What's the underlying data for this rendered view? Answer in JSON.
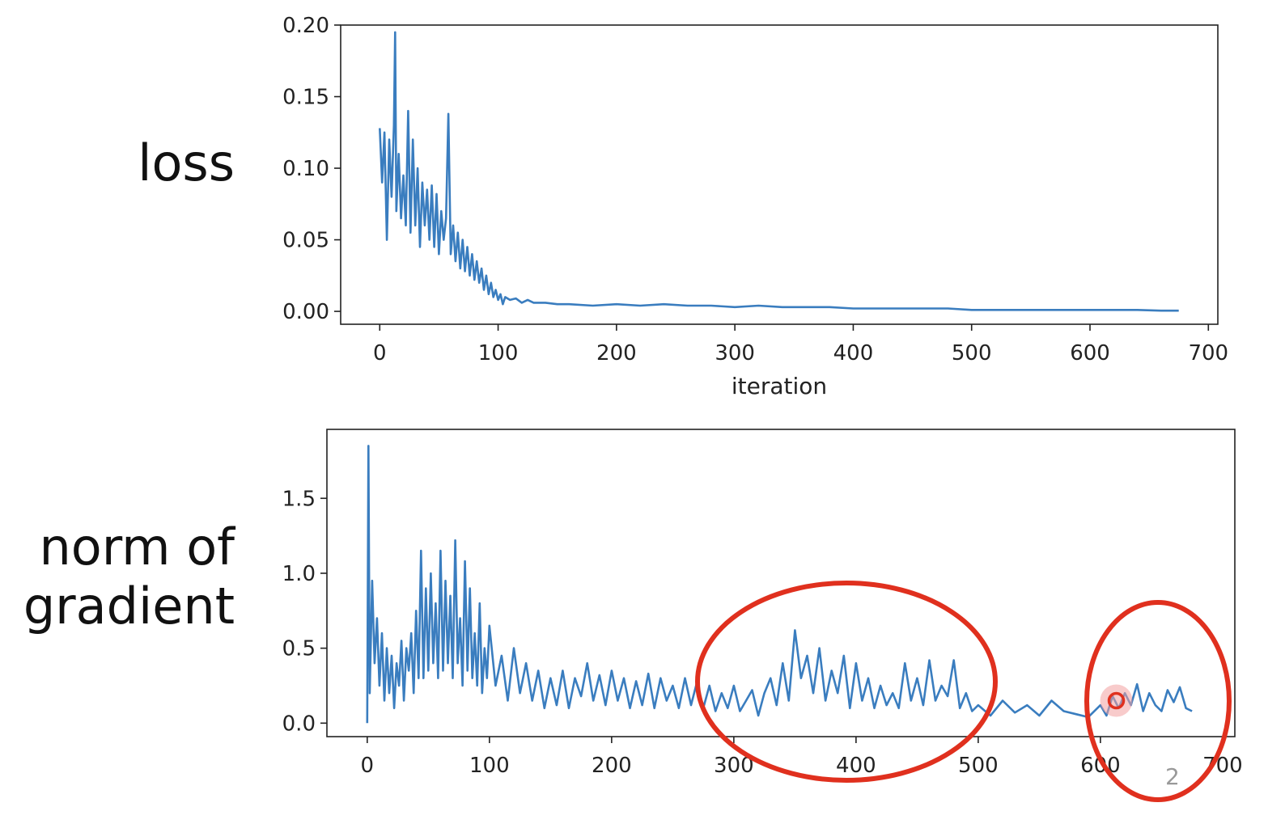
{
  "labels": {
    "loss": "loss",
    "norm_line1": "norm of",
    "norm_line2": "gradient"
  },
  "slide_number": "2",
  "colors": {
    "series": "#3a7dbf",
    "annotation": "#e0301e",
    "axes": "#222222"
  },
  "chart_data": [
    {
      "type": "line",
      "title": "",
      "xlabel": "iteration",
      "ylabel": "",
      "xlim": [
        -33,
        708
      ],
      "ylim": [
        -0.009,
        0.2
      ],
      "xticks": [
        0,
        100,
        200,
        300,
        400,
        500,
        600,
        700
      ],
      "xtick_labels": [
        "0",
        "100",
        "200",
        "300",
        "400",
        "500",
        "600",
        "700"
      ],
      "yticks": [
        0.0,
        0.05,
        0.1,
        0.15,
        0.2
      ],
      "ytick_labels": [
        "0.00",
        "0.05",
        "0.10",
        "0.15",
        "0.20"
      ],
      "grid": false,
      "series": [
        {
          "x": [
            0,
            2,
            4,
            6,
            8,
            10,
            12,
            13,
            14,
            16,
            18,
            20,
            22,
            24,
            26,
            28,
            30,
            32,
            34,
            36,
            38,
            40,
            42,
            44,
            46,
            48,
            50,
            52,
            54,
            56,
            58,
            60,
            62,
            64,
            66,
            68,
            70,
            72,
            74,
            76,
            78,
            80,
            82,
            84,
            86,
            88,
            90,
            92,
            94,
            96,
            98,
            100,
            102,
            104,
            106,
            110,
            115,
            120,
            125,
            130,
            140,
            150,
            160,
            180,
            200,
            220,
            240,
            260,
            280,
            300,
            320,
            340,
            360,
            380,
            400,
            420,
            440,
            460,
            480,
            500,
            520,
            540,
            560,
            580,
            600,
            620,
            640,
            660,
            675
          ],
          "y": [
            0.128,
            0.09,
            0.125,
            0.05,
            0.12,
            0.08,
            0.13,
            0.195,
            0.07,
            0.11,
            0.065,
            0.095,
            0.06,
            0.14,
            0.055,
            0.12,
            0.06,
            0.1,
            0.045,
            0.09,
            0.06,
            0.085,
            0.05,
            0.088,
            0.045,
            0.082,
            0.04,
            0.07,
            0.05,
            0.065,
            0.138,
            0.04,
            0.06,
            0.035,
            0.055,
            0.03,
            0.05,
            0.028,
            0.045,
            0.025,
            0.04,
            0.022,
            0.035,
            0.02,
            0.03,
            0.015,
            0.025,
            0.012,
            0.02,
            0.01,
            0.015,
            0.008,
            0.012,
            0.005,
            0.01,
            0.008,
            0.009,
            0.006,
            0.008,
            0.006,
            0.006,
            0.005,
            0.005,
            0.004,
            0.005,
            0.004,
            0.005,
            0.004,
            0.004,
            0.003,
            0.004,
            0.003,
            0.003,
            0.003,
            0.002,
            0.002,
            0.002,
            0.002,
            0.002,
            0.001,
            0.001,
            0.001,
            0.001,
            0.001,
            0.001,
            0.001,
            0.001,
            0.0005,
            0.0005
          ]
        }
      ]
    },
    {
      "type": "line",
      "title": "",
      "xlabel": "",
      "ylabel": "",
      "xlim": [
        -33,
        710
      ],
      "ylim": [
        -0.09,
        1.96
      ],
      "xticks": [
        0,
        100,
        200,
        300,
        400,
        500,
        600,
        700
      ],
      "xtick_labels": [
        "0",
        "100",
        "200",
        "300",
        "400",
        "500",
        "600",
        "700"
      ],
      "yticks": [
        0.0,
        0.5,
        1.0,
        1.5
      ],
      "ytick_labels": [
        "0.0",
        "0.5",
        "1.0",
        "1.5"
      ],
      "grid": false,
      "series": [
        {
          "x": [
            0,
            1,
            2,
            4,
            6,
            8,
            10,
            12,
            14,
            16,
            18,
            20,
            22,
            24,
            26,
            28,
            30,
            32,
            34,
            36,
            38,
            40,
            42,
            44,
            46,
            48,
            50,
            52,
            54,
            56,
            58,
            60,
            62,
            64,
            66,
            68,
            70,
            72,
            74,
            76,
            78,
            80,
            82,
            84,
            86,
            88,
            90,
            92,
            94,
            96,
            98,
            100,
            105,
            110,
            115,
            120,
            125,
            130,
            135,
            140,
            145,
            150,
            155,
            160,
            165,
            170,
            175,
            180,
            185,
            190,
            195,
            200,
            205,
            210,
            215,
            220,
            225,
            230,
            235,
            240,
            245,
            250,
            255,
            260,
            265,
            270,
            275,
            280,
            285,
            290,
            295,
            300,
            305,
            310,
            315,
            320,
            325,
            330,
            335,
            340,
            345,
            350,
            355,
            360,
            365,
            370,
            375,
            380,
            385,
            390,
            395,
            400,
            405,
            410,
            415,
            420,
            425,
            430,
            435,
            440,
            445,
            450,
            455,
            460,
            465,
            470,
            475,
            480,
            485,
            490,
            495,
            500,
            510,
            520,
            530,
            540,
            550,
            560,
            570,
            580,
            590,
            600,
            605,
            610,
            615,
            620,
            625,
            630,
            635,
            640,
            645,
            650,
            655,
            660,
            665,
            670,
            675
          ],
          "y": [
            0.0,
            1.85,
            0.2,
            0.95,
            0.4,
            0.7,
            0.25,
            0.6,
            0.15,
            0.5,
            0.2,
            0.45,
            0.1,
            0.4,
            0.25,
            0.55,
            0.15,
            0.5,
            0.35,
            0.6,
            0.2,
            0.75,
            0.3,
            1.15,
            0.3,
            0.9,
            0.35,
            1.0,
            0.4,
            0.8,
            0.3,
            1.15,
            0.35,
            0.95,
            0.4,
            0.85,
            0.3,
            1.22,
            0.4,
            0.7,
            0.25,
            1.08,
            0.35,
            0.9,
            0.3,
            0.6,
            0.25,
            0.8,
            0.2,
            0.5,
            0.3,
            0.65,
            0.25,
            0.45,
            0.15,
            0.5,
            0.2,
            0.4,
            0.15,
            0.35,
            0.1,
            0.3,
            0.12,
            0.35,
            0.1,
            0.3,
            0.18,
            0.4,
            0.15,
            0.32,
            0.12,
            0.35,
            0.15,
            0.3,
            0.1,
            0.28,
            0.12,
            0.33,
            0.1,
            0.3,
            0.15,
            0.25,
            0.1,
            0.3,
            0.12,
            0.28,
            0.1,
            0.25,
            0.08,
            0.2,
            0.1,
            0.25,
            0.08,
            0.15,
            0.22,
            0.05,
            0.2,
            0.3,
            0.12,
            0.4,
            0.15,
            0.62,
            0.3,
            0.45,
            0.2,
            0.5,
            0.15,
            0.35,
            0.2,
            0.45,
            0.1,
            0.4,
            0.15,
            0.3,
            0.1,
            0.25,
            0.12,
            0.2,
            0.1,
            0.4,
            0.15,
            0.3,
            0.12,
            0.42,
            0.15,
            0.25,
            0.18,
            0.42,
            0.1,
            0.2,
            0.08,
            0.12,
            0.05,
            0.15,
            0.07,
            0.12,
            0.05,
            0.15,
            0.08,
            0.06,
            0.04,
            0.12,
            0.05,
            0.18,
            0.1,
            0.2,
            0.12,
            0.26,
            0.08,
            0.2,
            0.12,
            0.08,
            0.22,
            0.14,
            0.24,
            0.1,
            0.08
          ]
        }
      ],
      "annotations": {
        "highlight_point": {
          "x": 613,
          "y": 0.15
        }
      }
    }
  ]
}
